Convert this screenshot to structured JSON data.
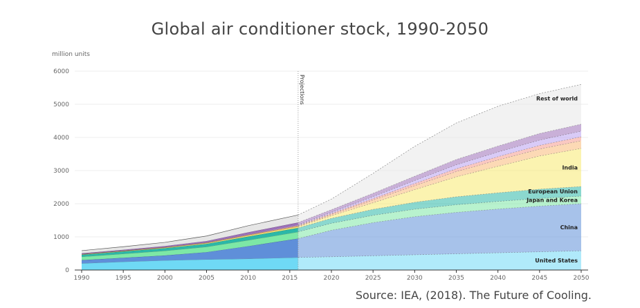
{
  "chart_data": {
    "type": "area",
    "stacked": true,
    "title": "Global air conditioner stock, 1990-2050",
    "ylabel": "million units",
    "ylim": [
      0,
      6000
    ],
    "yticks": [
      0,
      1000,
      2000,
      3000,
      4000,
      5000,
      6000
    ],
    "xlim": [
      1990,
      2050
    ],
    "xticks": [
      1990,
      1995,
      2000,
      2005,
      2010,
      2015,
      2020,
      2025,
      2030,
      2035,
      2040,
      2045,
      2050
    ],
    "grid": true,
    "projection_start": 2016,
    "projection_label": "Projections",
    "x": [
      1990,
      1995,
      2000,
      2005,
      2010,
      2016,
      2020,
      2025,
      2030,
      2035,
      2040,
      2045,
      2050
    ],
    "series": [
      {
        "name": "United States",
        "color": "#6fd9f5",
        "values": [
          200,
          250,
          290,
          320,
          340,
          380,
          400,
          430,
          460,
          490,
          520,
          550,
          580
        ]
      },
      {
        "name": "China",
        "color": "#5f8fd9",
        "values": [
          100,
          120,
          150,
          220,
          380,
          570,
          800,
          1000,
          1150,
          1250,
          1320,
          1380,
          1420
        ]
      },
      {
        "name": "Japan and Korea",
        "color": "#7de8a6",
        "values": [
          100,
          120,
          140,
          160,
          180,
          200,
          210,
          220,
          225,
          230,
          230,
          230,
          230
        ]
      },
      {
        "name": "European Union",
        "color": "#2bb8a8",
        "values": [
          60,
          70,
          80,
          90,
          110,
          120,
          150,
          180,
          210,
          240,
          260,
          280,
          290
        ]
      },
      {
        "name": "India",
        "color": "#f7e970",
        "values": [
          10,
          12,
          15,
          20,
          30,
          40,
          80,
          200,
          380,
          600,
          800,
          1000,
          1150
        ]
      },
      {
        "color": "#f9b978",
        "values": [
          5,
          6,
          8,
          10,
          15,
          20,
          40,
          80,
          120,
          160,
          190,
          210,
          230
        ]
      },
      {
        "color": "#f59a8e",
        "values": [
          5,
          5,
          6,
          8,
          10,
          15,
          25,
          45,
          65,
          85,
          100,
          110,
          120
        ]
      },
      {
        "color": "#b9a0f0",
        "values": [
          5,
          5,
          6,
          8,
          12,
          20,
          35,
          60,
          90,
          120,
          140,
          160,
          170
        ]
      },
      {
        "color": "#9c6fb8",
        "values": [
          20,
          25,
          30,
          40,
          60,
          70,
          80,
          100,
          130,
          160,
          180,
          200,
          210
        ]
      },
      {
        "name": "Rest of world",
        "color": "#e6e6e6",
        "values": [
          80,
          90,
          110,
          150,
          200,
          225,
          320,
          600,
          900,
          1100,
          1200,
          1200,
          1200
        ]
      }
    ]
  },
  "source": "Source: IEA, (2018). The Future of Cooling."
}
